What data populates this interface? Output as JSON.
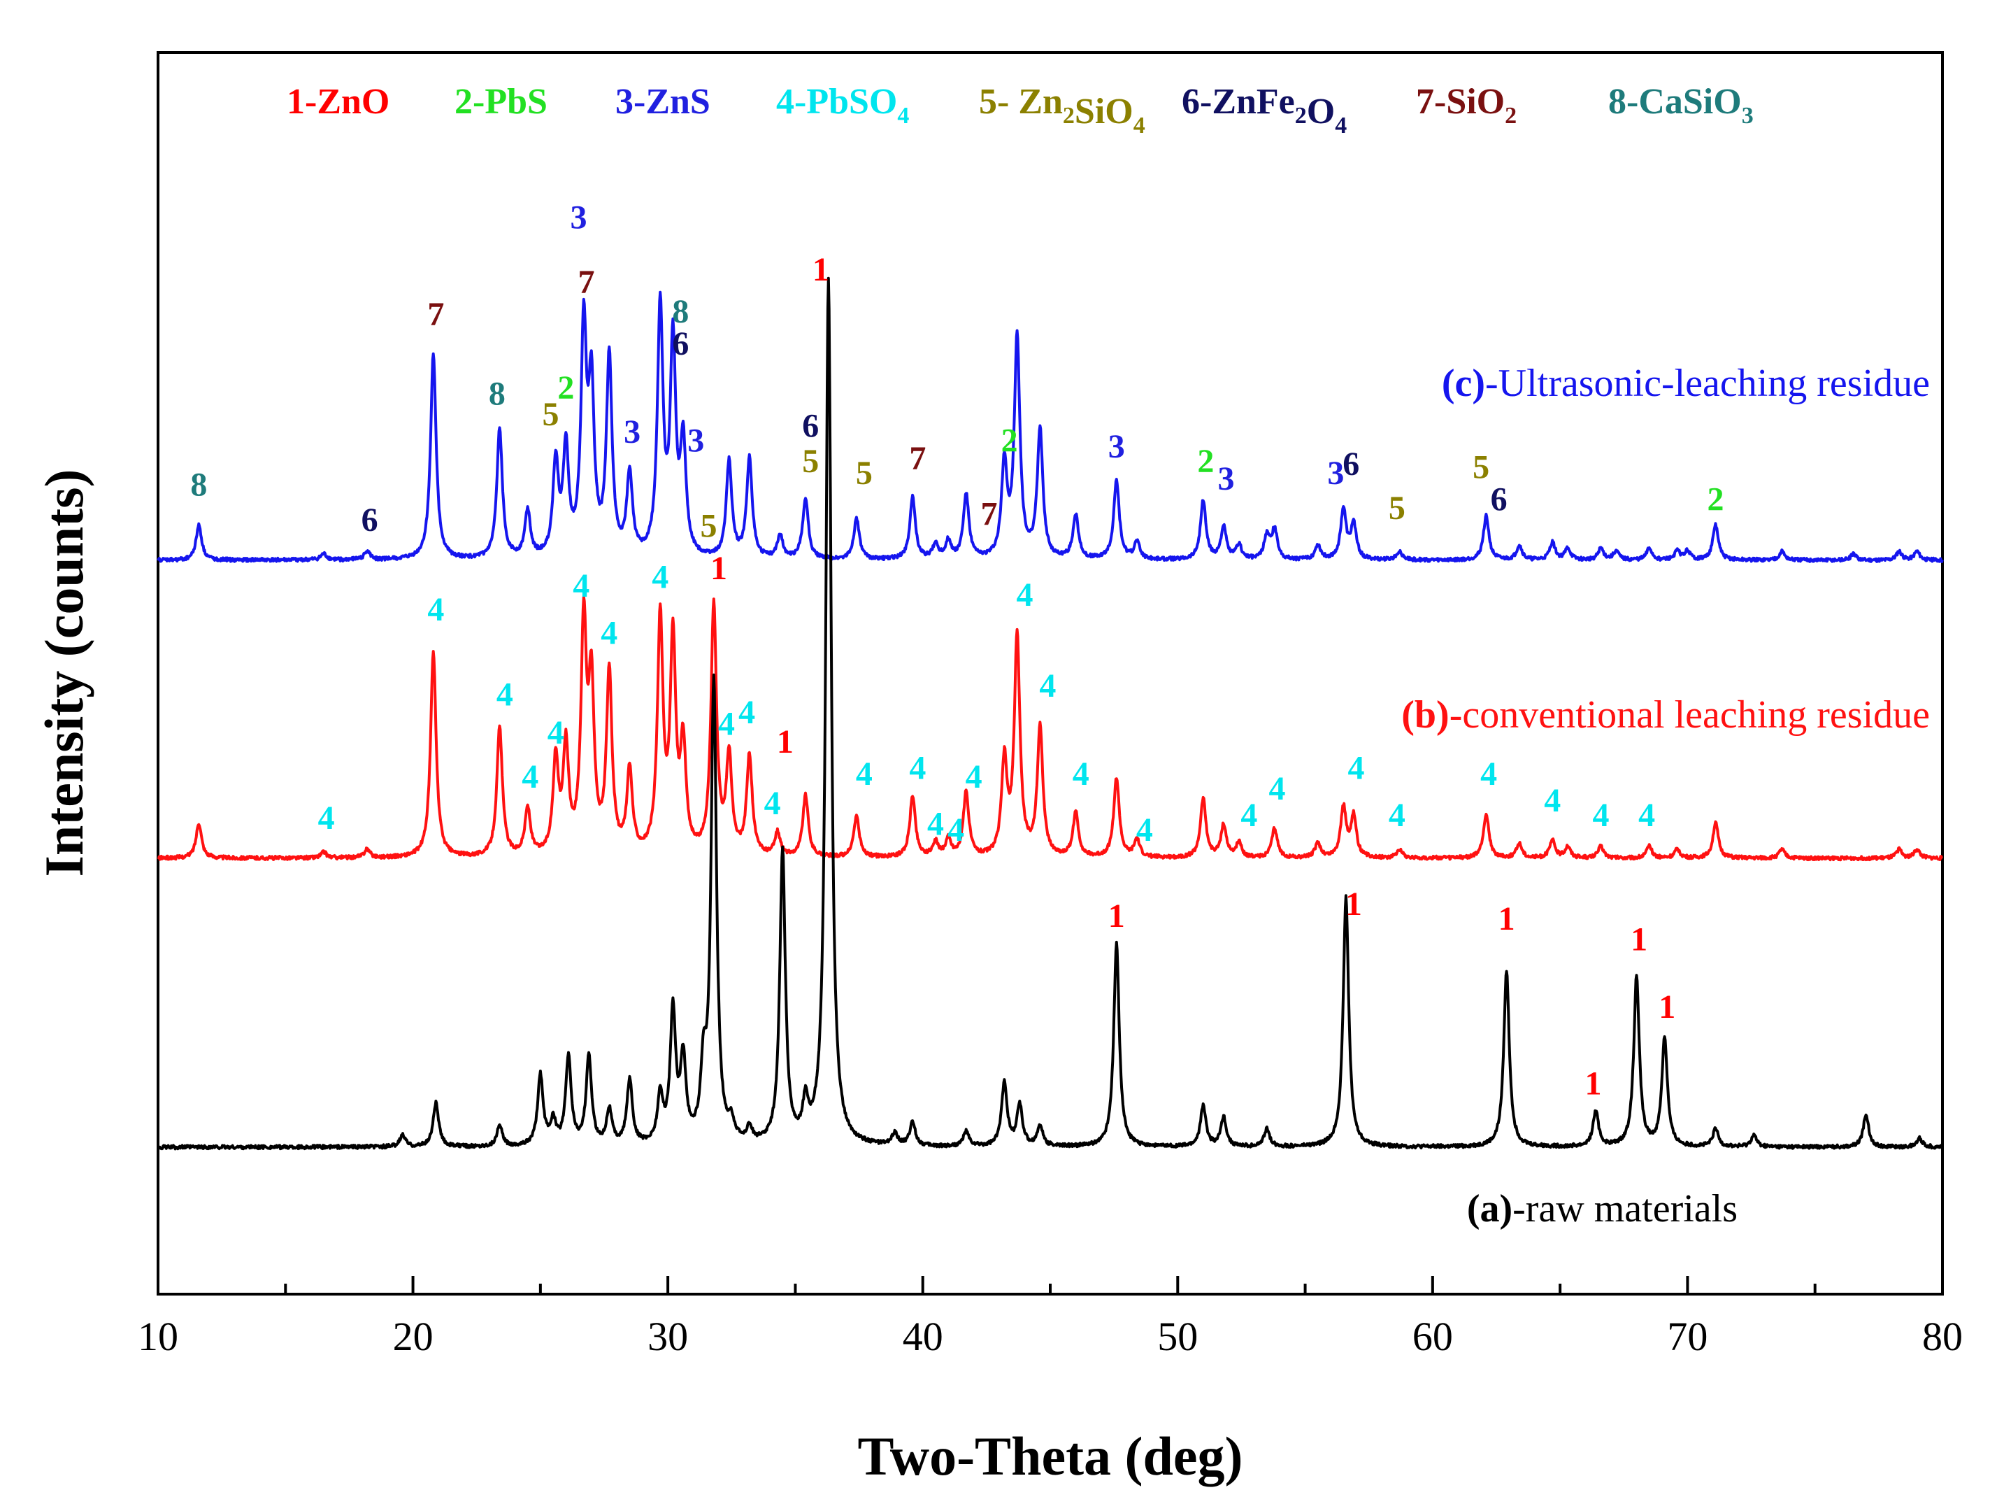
{
  "chart_data": {
    "type": "line",
    "title": "",
    "xlabel": "Two-Theta (deg)",
    "ylabel": "Intensity (counts)",
    "xlim": [
      10,
      80
    ],
    "xticks": [
      "10",
      "20",
      "30",
      "40",
      "50",
      "60",
      "70",
      "80"
    ],
    "legend": [
      {
        "num": "1",
        "phase": "ZnO",
        "color": "#ff0000",
        "parts": [
          {
            "t": "1-ZnO",
            "s": false
          }
        ]
      },
      {
        "num": "2",
        "phase": "PbS",
        "color": "#22e022",
        "parts": [
          {
            "t": "2-PbS",
            "s": false
          }
        ]
      },
      {
        "num": "3",
        "phase": "ZnS",
        "color": "#2020e0",
        "parts": [
          {
            "t": "3-ZnS",
            "s": false
          }
        ]
      },
      {
        "num": "4",
        "phase": "PbSO4",
        "color": "#00e5ee",
        "parts": [
          {
            "t": "4-PbSO",
            "s": false
          },
          {
            "t": "4",
            "s": true
          }
        ]
      },
      {
        "num": "5",
        "phase": "Zn2SiO4",
        "color": "#8b8000",
        "parts": [
          {
            "t": "5- Zn",
            "s": false
          },
          {
            "t": "2",
            "s": true
          },
          {
            "t": "SiO",
            "s": false
          },
          {
            "t": "4",
            "s": true
          }
        ]
      },
      {
        "num": "6",
        "phase": "ZnFe2O4",
        "color": "#101060",
        "parts": [
          {
            "t": "6-ZnFe",
            "s": false
          },
          {
            "t": "2",
            "s": true
          },
          {
            "t": "O",
            "s": false
          },
          {
            "t": "4",
            "s": true
          }
        ]
      },
      {
        "num": "7",
        "phase": "SiO2",
        "color": "#7a1010",
        "parts": [
          {
            "t": "7-SiO",
            "s": false
          },
          {
            "t": "2",
            "s": true
          }
        ]
      },
      {
        "num": "8",
        "phase": "CaSiO3",
        "color": "#1e7b7b",
        "parts": [
          {
            "t": "8-CaSiO",
            "s": false
          },
          {
            "t": "3",
            "s": true
          }
        ]
      }
    ],
    "series": [
      {
        "id": "c",
        "name_bold": "(c)",
        "name_rest": "-Ultrasonic-leaching residue",
        "color": "#1515ee",
        "peaks": [
          [
            11.6,
            0.12
          ],
          [
            16.5,
            0.02
          ],
          [
            18.2,
            0.03
          ],
          [
            20.8,
            0.7
          ],
          [
            23.4,
            0.44
          ],
          [
            24.5,
            0.16
          ],
          [
            25.6,
            0.32
          ],
          [
            26.0,
            0.36
          ],
          [
            26.7,
            0.77
          ],
          [
            27.0,
            0.55
          ],
          [
            27.7,
            0.68
          ],
          [
            28.5,
            0.28
          ],
          [
            29.7,
            0.85
          ],
          [
            30.2,
            0.72
          ],
          [
            30.6,
            0.38
          ],
          [
            32.4,
            0.33
          ],
          [
            33.2,
            0.34
          ],
          [
            34.4,
            0.08
          ],
          [
            35.4,
            0.21
          ],
          [
            37.4,
            0.14
          ],
          [
            39.6,
            0.21
          ],
          [
            40.5,
            0.05
          ],
          [
            41.0,
            0.06
          ],
          [
            41.7,
            0.22
          ],
          [
            43.2,
            0.32
          ],
          [
            43.7,
            0.75
          ],
          [
            44.6,
            0.44
          ],
          [
            46.0,
            0.15
          ],
          [
            47.6,
            0.27
          ],
          [
            48.4,
            0.06
          ],
          [
            51.0,
            0.2
          ],
          [
            51.8,
            0.11
          ],
          [
            52.4,
            0.05
          ],
          [
            53.5,
            0.08
          ],
          [
            53.8,
            0.1
          ],
          [
            55.5,
            0.05
          ],
          [
            56.5,
            0.17
          ],
          [
            56.9,
            0.12
          ],
          [
            58.7,
            0.03
          ],
          [
            62.1,
            0.15
          ],
          [
            63.4,
            0.05
          ],
          [
            64.7,
            0.06
          ],
          [
            65.3,
            0.04
          ],
          [
            66.6,
            0.04
          ],
          [
            67.2,
            0.03
          ],
          [
            68.5,
            0.04
          ],
          [
            69.6,
            0.03
          ],
          [
            70.0,
            0.03
          ],
          [
            71.1,
            0.12
          ],
          [
            73.7,
            0.03
          ],
          [
            76.5,
            0.02
          ],
          [
            78.3,
            0.03
          ],
          [
            79.0,
            0.03
          ]
        ],
        "labels": [
          {
            "t": "8",
            "c": 8,
            "x": 11.6,
            "y": 0.22
          },
          {
            "t": "6",
            "c": 6,
            "x": 18.3,
            "y": 0.1
          },
          {
            "t": "7",
            "c": 7,
            "x": 20.9,
            "y": 0.8
          },
          {
            "t": "8",
            "c": 8,
            "x": 23.3,
            "y": 0.53
          },
          {
            "t": "5",
            "c": 5,
            "x": 25.4,
            "y": 0.46
          },
          {
            "t": "2",
            "c": 2,
            "x": 26.0,
            "y": 0.55
          },
          {
            "t": "3",
            "c": 3,
            "x": 26.5,
            "y": 1.13
          },
          {
            "t": "7",
            "c": 7,
            "x": 26.8,
            "y": 0.91
          },
          {
            "t": "3",
            "c": 3,
            "x": 28.6,
            "y": 0.4
          },
          {
            "t": "8",
            "c": 8,
            "x": 30.5,
            "y": 0.81
          },
          {
            "t": "6",
            "c": 6,
            "x": 30.5,
            "y": 0.7
          },
          {
            "t": "3",
            "c": 3,
            "x": 31.1,
            "y": 0.37
          },
          {
            "t": "5",
            "c": 5,
            "x": 31.6,
            "y": 0.08
          },
          {
            "t": "6",
            "c": 6,
            "x": 35.6,
            "y": 0.42
          },
          {
            "t": "5",
            "c": 5,
            "x": 35.6,
            "y": 0.3
          },
          {
            "t": "5",
            "c": 5,
            "x": 37.7,
            "y": 0.26
          },
          {
            "t": "7",
            "c": 7,
            "x": 39.8,
            "y": 0.31
          },
          {
            "t": "7",
            "c": 7,
            "x": 42.6,
            "y": 0.12
          },
          {
            "t": "2",
            "c": 2,
            "x": 43.4,
            "y": 0.37
          },
          {
            "t": "3",
            "c": 3,
            "x": 47.6,
            "y": 0.35
          },
          {
            "t": "2",
            "c": 2,
            "x": 51.1,
            "y": 0.3
          },
          {
            "t": "3",
            "c": 3,
            "x": 51.9,
            "y": 0.24
          },
          {
            "t": "3",
            "c": 3,
            "x": 56.2,
            "y": 0.26
          },
          {
            "t": "6",
            "c": 6,
            "x": 56.8,
            "y": 0.29
          },
          {
            "t": "5",
            "c": 5,
            "x": 58.6,
            "y": 0.14
          },
          {
            "t": "5",
            "c": 5,
            "x": 61.9,
            "y": 0.28
          },
          {
            "t": "6",
            "c": 6,
            "x": 62.6,
            "y": 0.17
          },
          {
            "t": "2",
            "c": 2,
            "x": 71.1,
            "y": 0.17
          }
        ]
      },
      {
        "id": "b",
        "name_bold": "(b)",
        "name_rest": "-conventional leaching residue",
        "color": "#ff1111",
        "peaks": [
          [
            11.6,
            0.12
          ],
          [
            16.5,
            0.02
          ],
          [
            18.2,
            0.03
          ],
          [
            20.8,
            0.7
          ],
          [
            23.4,
            0.44
          ],
          [
            24.5,
            0.16
          ],
          [
            25.6,
            0.32
          ],
          [
            26.0,
            0.36
          ],
          [
            26.7,
            0.77
          ],
          [
            27.0,
            0.55
          ],
          [
            27.7,
            0.62
          ],
          [
            28.5,
            0.28
          ],
          [
            29.7,
            0.8
          ],
          [
            30.2,
            0.72
          ],
          [
            30.6,
            0.36
          ],
          [
            31.8,
            0.85
          ],
          [
            32.4,
            0.33
          ],
          [
            33.2,
            0.34
          ],
          [
            34.3,
            0.08
          ],
          [
            35.4,
            0.21
          ],
          [
            37.4,
            0.14
          ],
          [
            39.6,
            0.21
          ],
          [
            40.5,
            0.05
          ],
          [
            41.0,
            0.06
          ],
          [
            41.7,
            0.22
          ],
          [
            43.2,
            0.32
          ],
          [
            43.7,
            0.75
          ],
          [
            44.6,
            0.44
          ],
          [
            46.0,
            0.15
          ],
          [
            47.6,
            0.27
          ],
          [
            48.4,
            0.06
          ],
          [
            51.0,
            0.2
          ],
          [
            51.8,
            0.11
          ],
          [
            52.4,
            0.05
          ],
          [
            53.8,
            0.1
          ],
          [
            55.5,
            0.05
          ],
          [
            56.5,
            0.17
          ],
          [
            56.9,
            0.14
          ],
          [
            58.7,
            0.03
          ],
          [
            62.1,
            0.15
          ],
          [
            63.4,
            0.05
          ],
          [
            64.7,
            0.06
          ],
          [
            65.3,
            0.04
          ],
          [
            66.6,
            0.04
          ],
          [
            68.5,
            0.04
          ],
          [
            69.6,
            0.03
          ],
          [
            71.1,
            0.12
          ],
          [
            73.7,
            0.03
          ],
          [
            78.3,
            0.03
          ],
          [
            79.0,
            0.03
          ]
        ],
        "labels": [
          {
            "t": "4",
            "c": 4,
            "x": 16.6,
            "y": 0.1
          },
          {
            "t": "4",
            "c": 4,
            "x": 20.9,
            "y": 0.81
          },
          {
            "t": "4",
            "c": 4,
            "x": 23.6,
            "y": 0.52
          },
          {
            "t": "4",
            "c": 4,
            "x": 24.6,
            "y": 0.24
          },
          {
            "t": "4",
            "c": 4,
            "x": 25.6,
            "y": 0.39
          },
          {
            "t": "4",
            "c": 4,
            "x": 26.6,
            "y": 0.89
          },
          {
            "t": "4",
            "c": 4,
            "x": 27.7,
            "y": 0.73
          },
          {
            "t": "4",
            "c": 4,
            "x": 29.7,
            "y": 0.92
          },
          {
            "t": "1",
            "c": 1,
            "x": 32.0,
            "y": 0.95
          },
          {
            "t": "4",
            "c": 4,
            "x": 32.3,
            "y": 0.42
          },
          {
            "t": "4",
            "c": 4,
            "x": 33.1,
            "y": 0.46
          },
          {
            "t": "1",
            "c": 1,
            "x": 34.6,
            "y": 0.36
          },
          {
            "t": "4",
            "c": 4,
            "x": 34.1,
            "y": 0.15
          },
          {
            "t": "4",
            "c": 4,
            "x": 37.7,
            "y": 0.25
          },
          {
            "t": "4",
            "c": 4,
            "x": 39.8,
            "y": 0.27
          },
          {
            "t": "4",
            "c": 4,
            "x": 40.5,
            "y": 0.08
          },
          {
            "t": "4",
            "c": 4,
            "x": 41.3,
            "y": 0.06
          },
          {
            "t": "4",
            "c": 4,
            "x": 42.0,
            "y": 0.24
          },
          {
            "t": "4",
            "c": 4,
            "x": 44.0,
            "y": 0.86
          },
          {
            "t": "4",
            "c": 4,
            "x": 44.9,
            "y": 0.55
          },
          {
            "t": "4",
            "c": 4,
            "x": 46.2,
            "y": 0.25
          },
          {
            "t": "4",
            "c": 4,
            "x": 48.7,
            "y": 0.06
          },
          {
            "t": "4",
            "c": 4,
            "x": 52.8,
            "y": 0.11
          },
          {
            "t": "4",
            "c": 4,
            "x": 53.9,
            "y": 0.2
          },
          {
            "t": "4",
            "c": 4,
            "x": 57.0,
            "y": 0.27
          },
          {
            "t": "4",
            "c": 4,
            "x": 58.6,
            "y": 0.11
          },
          {
            "t": "4",
            "c": 4,
            "x": 62.2,
            "y": 0.25
          },
          {
            "t": "4",
            "c": 4,
            "x": 64.7,
            "y": 0.16
          },
          {
            "t": "4",
            "c": 4,
            "x": 66.6,
            "y": 0.11
          },
          {
            "t": "4",
            "c": 4,
            "x": 68.4,
            "y": 0.11
          }
        ]
      },
      {
        "id": "a",
        "name_bold": "(a)",
        "name_rest": "-raw materials",
        "color": "#000000",
        "peaks": [
          [
            19.6,
            0.04
          ],
          [
            20.9,
            0.15
          ],
          [
            23.4,
            0.07
          ],
          [
            25.0,
            0.24
          ],
          [
            25.5,
            0.08
          ],
          [
            26.1,
            0.3
          ],
          [
            26.9,
            0.3
          ],
          [
            27.7,
            0.12
          ],
          [
            28.5,
            0.22
          ],
          [
            29.7,
            0.16
          ],
          [
            30.2,
            0.45
          ],
          [
            30.6,
            0.28
          ],
          [
            31.4,
            0.23
          ],
          [
            31.8,
            1.57
          ],
          [
            32.5,
            0.06
          ],
          [
            33.2,
            0.05
          ],
          [
            34.5,
            1.0
          ],
          [
            35.4,
            0.12
          ],
          [
            36.3,
            2.95
          ],
          [
            38.9,
            0.04
          ],
          [
            39.6,
            0.08
          ],
          [
            41.7,
            0.05
          ],
          [
            43.2,
            0.22
          ],
          [
            43.8,
            0.14
          ],
          [
            44.6,
            0.07
          ],
          [
            47.6,
            0.69
          ],
          [
            51.0,
            0.14
          ],
          [
            51.8,
            0.1
          ],
          [
            53.5,
            0.06
          ],
          [
            56.6,
            0.85
          ],
          [
            62.9,
            0.6
          ],
          [
            66.4,
            0.12
          ],
          [
            68.0,
            0.58
          ],
          [
            69.1,
            0.37
          ],
          [
            71.1,
            0.06
          ],
          [
            72.6,
            0.04
          ],
          [
            77.0,
            0.11
          ],
          [
            79.1,
            0.03
          ]
        ],
        "labels": [
          {
            "t": "1",
            "c": 1,
            "x": 36.0,
            "y": 2.95
          },
          {
            "t": "1",
            "c": 1,
            "x": 47.6,
            "y": 0.75
          },
          {
            "t": "1",
            "c": 1,
            "x": 56.9,
            "y": 0.79
          },
          {
            "t": "1",
            "c": 1,
            "x": 62.9,
            "y": 0.74
          },
          {
            "t": "1",
            "c": 1,
            "x": 68.1,
            "y": 0.67
          },
          {
            "t": "1",
            "c": 1,
            "x": 69.2,
            "y": 0.44
          },
          {
            "t": "1",
            "c": 1,
            "x": 66.3,
            "y": 0.18
          }
        ]
      }
    ]
  }
}
